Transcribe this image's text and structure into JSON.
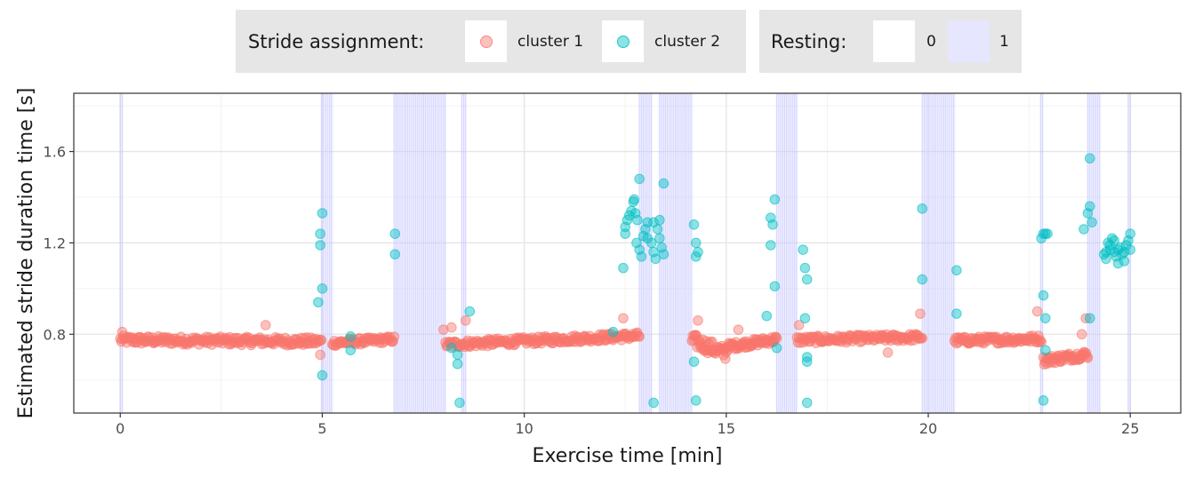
{
  "legend": {
    "stride_title": "Stride assignment:",
    "cluster1_label": "cluster 1",
    "cluster2_label": "cluster 2",
    "resting_title": "Resting:",
    "rest0_label": "0",
    "rest1_label": "1"
  },
  "colors": {
    "cluster1": "#F8766D",
    "cluster2": "#00BFC4",
    "resting": "#C8C8FF",
    "resting_key": "#E6E6FF",
    "legend_bg": "#e6e6e6",
    "grid_major": "#e5e5e5",
    "grid_minor": "#f2f2f2",
    "panel_border": "#333333"
  },
  "chart_data": {
    "type": "scatter",
    "title": "",
    "xlabel": "Exercise time [min]",
    "ylabel": "Estimated stride duration time [s]",
    "xlim": [
      -1.15,
      26.25
    ],
    "ylim": [
      0.455,
      1.855
    ],
    "x_ticks": [
      0,
      5,
      10,
      15,
      20,
      25
    ],
    "x_tick_labels": [
      "0",
      "5",
      "10",
      "15",
      "20",
      "25"
    ],
    "y_ticks": [
      0.8,
      1.2,
      1.6
    ],
    "y_tick_labels": [
      "0.8",
      "1.2",
      "1.6"
    ],
    "grid": true,
    "legend_position": "top",
    "resting_intervals": [
      [
        0.0,
        0.05
      ],
      [
        4.98,
        5.25
      ],
      [
        6.78,
        8.05
      ],
      [
        8.45,
        8.55
      ],
      [
        12.85,
        13.15
      ],
      [
        13.35,
        14.15
      ],
      [
        16.25,
        16.75
      ],
      [
        19.85,
        20.65
      ],
      [
        22.78,
        22.83
      ],
      [
        23.95,
        24.25
      ],
      [
        24.95,
        25.0
      ]
    ],
    "cluster1_segments": [
      {
        "x0": 0.0,
        "x1": 4.98,
        "y0": 0.775,
        "y1": 0.768,
        "dy": 0.018,
        "n": 190
      },
      {
        "x0": 5.25,
        "x1": 6.78,
        "y0": 0.762,
        "y1": 0.778,
        "dy": 0.014,
        "n": 60
      },
      {
        "x0": 8.05,
        "x1": 12.85,
        "y0": 0.755,
        "y1": 0.793,
        "dy": 0.016,
        "n": 185
      },
      {
        "x0": 14.15,
        "x1": 15.0,
        "y0": 0.775,
        "y1": 0.715,
        "dy": 0.03,
        "n": 40
      },
      {
        "x0": 15.0,
        "x1": 16.25,
        "y0": 0.745,
        "y1": 0.778,
        "dy": 0.016,
        "n": 60
      },
      {
        "x0": 16.75,
        "x1": 19.85,
        "y0": 0.775,
        "y1": 0.787,
        "dy": 0.016,
        "n": 120
      },
      {
        "x0": 20.65,
        "x1": 22.8,
        "y0": 0.772,
        "y1": 0.78,
        "dy": 0.016,
        "n": 90
      },
      {
        "x0": 22.85,
        "x1": 23.95,
        "y0": 0.685,
        "y1": 0.712,
        "dy": 0.018,
        "n": 50
      }
    ],
    "cluster1_outliers": [
      [
        0.05,
        0.81
      ],
      [
        3.6,
        0.84
      ],
      [
        4.95,
        0.71
      ],
      [
        8.0,
        0.82
      ],
      [
        8.2,
        0.83
      ],
      [
        8.55,
        0.86
      ],
      [
        12.45,
        0.87
      ],
      [
        14.3,
        0.86
      ],
      [
        15.3,
        0.82
      ],
      [
        16.8,
        0.84
      ],
      [
        19.8,
        0.89
      ],
      [
        22.7,
        0.9
      ],
      [
        23.8,
        0.8
      ],
      [
        23.9,
        0.87
      ],
      [
        19.0,
        0.72
      ]
    ],
    "cluster2_points": [
      [
        4.9,
        0.94
      ],
      [
        4.95,
        1.19
      ],
      [
        4.95,
        1.24
      ],
      [
        5.0,
        1.0
      ],
      [
        5.0,
        1.33
      ],
      [
        5.0,
        0.62
      ],
      [
        5.7,
        0.79
      ],
      [
        5.7,
        0.73
      ],
      [
        6.8,
        1.24
      ],
      [
        6.8,
        1.15
      ],
      [
        8.2,
        0.74
      ],
      [
        8.35,
        0.67
      ],
      [
        8.4,
        0.5
      ],
      [
        8.65,
        0.9
      ],
      [
        8.35,
        0.71
      ],
      [
        12.2,
        0.81
      ],
      [
        12.45,
        1.09
      ],
      [
        12.5,
        1.24
      ],
      [
        12.5,
        1.27
      ],
      [
        12.55,
        1.3
      ],
      [
        12.6,
        1.32
      ],
      [
        12.65,
        1.34
      ],
      [
        12.7,
        1.38
      ],
      [
        12.72,
        1.39
      ],
      [
        12.75,
        1.33
      ],
      [
        12.8,
        1.3
      ],
      [
        12.78,
        1.2
      ],
      [
        12.85,
        1.17
      ],
      [
        12.85,
        1.48
      ],
      [
        12.9,
        1.14
      ],
      [
        12.95,
        1.23
      ],
      [
        13.0,
        1.26
      ],
      [
        13.05,
        1.22
      ],
      [
        13.05,
        1.29
      ],
      [
        13.15,
        1.2
      ],
      [
        13.2,
        1.16
      ],
      [
        13.25,
        1.13
      ],
      [
        13.2,
        1.29
      ],
      [
        13.3,
        1.26
      ],
      [
        13.35,
        1.22
      ],
      [
        13.4,
        1.18
      ],
      [
        13.35,
        1.3
      ],
      [
        13.45,
        1.15
      ],
      [
        13.45,
        1.46
      ],
      [
        13.2,
        0.5
      ],
      [
        14.2,
        1.28
      ],
      [
        14.25,
        1.2
      ],
      [
        14.3,
        1.16
      ],
      [
        14.25,
        1.14
      ],
      [
        14.2,
        0.68
      ],
      [
        14.25,
        0.51
      ],
      [
        16.0,
        0.88
      ],
      [
        16.1,
        1.31
      ],
      [
        16.15,
        1.28
      ],
      [
        16.2,
        1.39
      ],
      [
        16.1,
        1.19
      ],
      [
        16.2,
        1.01
      ],
      [
        16.25,
        0.74
      ],
      [
        16.9,
        1.17
      ],
      [
        16.95,
        1.09
      ],
      [
        17.0,
        1.04
      ],
      [
        16.95,
        0.87
      ],
      [
        17.0,
        0.7
      ],
      [
        17.0,
        0.68
      ],
      [
        17.0,
        0.5
      ],
      [
        19.85,
        1.35
      ],
      [
        19.85,
        1.04
      ],
      [
        20.7,
        1.08
      ],
      [
        20.7,
        0.89
      ],
      [
        22.8,
        1.22
      ],
      [
        22.85,
        1.24
      ],
      [
        22.9,
        1.24
      ],
      [
        22.95,
        1.24
      ],
      [
        22.85,
        0.97
      ],
      [
        22.9,
        0.87
      ],
      [
        22.9,
        0.73
      ],
      [
        22.85,
        0.51
      ],
      [
        23.85,
        1.26
      ],
      [
        23.95,
        1.33
      ],
      [
        24.0,
        1.36
      ],
      [
        24.05,
        1.29
      ],
      [
        24.0,
        1.57
      ],
      [
        24.0,
        0.87
      ],
      [
        24.35,
        1.15
      ],
      [
        24.4,
        1.13
      ],
      [
        24.45,
        1.2
      ],
      [
        24.5,
        1.17
      ],
      [
        24.55,
        1.22
      ],
      [
        24.6,
        1.16
      ],
      [
        24.65,
        1.14
      ],
      [
        24.7,
        1.11
      ],
      [
        24.75,
        1.18
      ],
      [
        24.8,
        1.15
      ],
      [
        24.85,
        1.12
      ],
      [
        24.9,
        1.19
      ],
      [
        24.95,
        1.21
      ],
      [
        25.0,
        1.24
      ],
      [
        24.5,
        1.19
      ],
      [
        24.6,
        1.21
      ],
      [
        24.7,
        1.17
      ],
      [
        24.85,
        1.16
      ],
      [
        24.4,
        1.16
      ],
      [
        25.0,
        1.17
      ]
    ]
  }
}
